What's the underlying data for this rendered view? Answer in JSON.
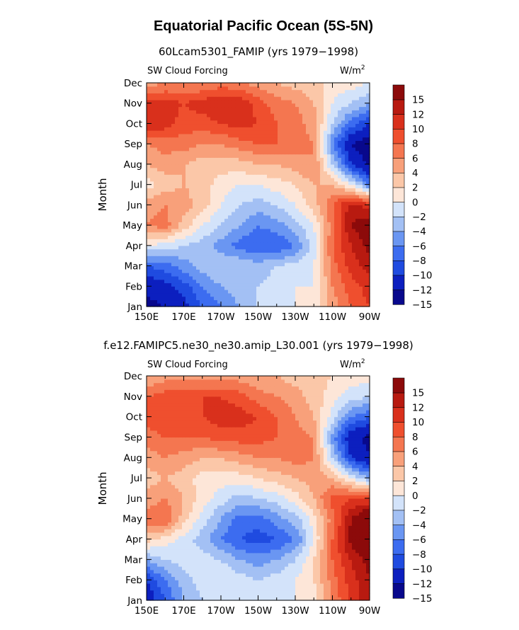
{
  "figure": {
    "title": "Equatorial Pacific Ocean (5S-5N)",
    "colorbar_colors": [
      "#08088c",
      "#0c1fbf",
      "#1f4be0",
      "#3c6cf0",
      "#6a96f2",
      "#a3c0f4",
      "#d3e3fa",
      "#fde6d8",
      "#fbc7a8",
      "#f8a07a",
      "#f47650",
      "#ef4f2e",
      "#d9301c",
      "#b81a10",
      "#8c0a0a"
    ],
    "colorbar_labels": [
      "15",
      "12",
      "10",
      "8",
      "6",
      "4",
      "2",
      "0",
      "−2",
      "−4",
      "−6",
      "−8",
      "−10",
      "−12",
      "−15"
    ],
    "colorbar_note": "boundaries: -15,-12,-10,-8,-6,-4,-2,0,2,4,6,8,10,12,15"
  },
  "chart_data": [
    {
      "type": "heatmap",
      "title": "60Lcam5301_FAMIP (yrs 1979−1998)",
      "left_label": "SW Cloud Forcing",
      "units_label": "W/m",
      "units_sup": "2",
      "ylabel": "Month",
      "x_tick_labels": [
        "150E",
        "170E",
        "170W",
        "150W",
        "130W",
        "110W",
        "90W"
      ],
      "x_tick_values_lon": [
        150,
        170,
        190,
        210,
        230,
        250,
        270
      ],
      "xlim_lon": [
        150,
        270
      ],
      "y_tick_labels": [
        "Jan",
        "Feb",
        "Mar",
        "Apr",
        "May",
        "Jun",
        "Jul",
        "Aug",
        "Sep",
        "Oct",
        "Nov",
        "Dec"
      ],
      "grid_lon": [
        150,
        160,
        170,
        180,
        190,
        200,
        210,
        220,
        230,
        240,
        250,
        260,
        270
      ],
      "values": [
        [
          -16,
          -15,
          -13,
          -10,
          -8,
          -6,
          -4,
          -3,
          -2,
          -2,
          3,
          6,
          8
        ],
        [
          -14,
          -13,
          -11,
          -8,
          -6,
          -5,
          -4,
          -3,
          -2,
          -2,
          4,
          7,
          9
        ],
        [
          -10,
          -9,
          -7,
          -5,
          -4,
          -4,
          -5,
          -4,
          -3,
          -2,
          5,
          9,
          11
        ],
        [
          -2,
          -3,
          -4,
          -5,
          -7,
          -9,
          -10,
          -10,
          -8,
          -3,
          6,
          10,
          13
        ],
        [
          4,
          5,
          1,
          -2,
          -4,
          -6,
          -8,
          -7,
          -5,
          -2,
          5,
          12,
          14
        ],
        [
          3,
          4,
          3,
          1,
          -2,
          -4,
          -5,
          -4,
          -2,
          1,
          6,
          11,
          9
        ],
        [
          -1,
          1,
          2,
          1,
          -1,
          -2,
          -2,
          -1,
          0,
          2,
          2,
          -2,
          -8
        ],
        [
          2,
          3,
          2,
          1,
          1,
          1,
          2,
          2,
          3,
          4,
          -4,
          -12,
          -16
        ],
        [
          4,
          5,
          5,
          4,
          4,
          5,
          6,
          6,
          5,
          4,
          -8,
          -15,
          -17
        ],
        [
          10,
          9,
          7,
          7,
          8,
          9,
          8,
          6,
          5,
          3,
          -4,
          -9,
          -12
        ],
        [
          9,
          9,
          8,
          9,
          10,
          10,
          7,
          5,
          4,
          2,
          -2,
          -4,
          -6
        ],
        [
          3,
          4,
          4,
          4,
          5,
          4,
          3,
          2,
          1,
          1,
          -1,
          -1,
          -2
        ]
      ]
    },
    {
      "type": "heatmap",
      "title": "f.e12.FAMIPC5.ne30_ne30.amip_L30.001 (yrs 1979−1998)",
      "left_label": "SW Cloud Forcing",
      "units_label": "W/m",
      "units_sup": "2",
      "ylabel": "Month",
      "x_tick_labels": [
        "150E",
        "170E",
        "170W",
        "150W",
        "130W",
        "110W",
        "90W"
      ],
      "x_tick_values_lon": [
        150,
        170,
        190,
        210,
        230,
        250,
        270
      ],
      "xlim_lon": [
        150,
        270
      ],
      "y_tick_labels": [
        "Jan",
        "Feb",
        "Mar",
        "Apr",
        "May",
        "Jun",
        "Jul",
        "Aug",
        "Sep",
        "Oct",
        "Nov",
        "Dec"
      ],
      "grid_lon": [
        150,
        160,
        170,
        180,
        190,
        200,
        210,
        220,
        230,
        240,
        250,
        260,
        270
      ],
      "values": [
        [
          -14,
          -10,
          -6,
          -4,
          -3,
          -3,
          -4,
          -3,
          -2,
          -1,
          4,
          9,
          11
        ],
        [
          -12,
          -8,
          -5,
          -3,
          -2,
          -3,
          -4,
          -3,
          -2,
          0,
          5,
          9,
          12
        ],
        [
          -6,
          -4,
          -3,
          -3,
          -4,
          -6,
          -7,
          -6,
          -4,
          0,
          6,
          10,
          13
        ],
        [
          1,
          -1,
          -3,
          -5,
          -8,
          -10,
          -11,
          -10,
          -8,
          -2,
          6,
          13,
          15
        ],
        [
          5,
          6,
          1,
          -3,
          -6,
          -9,
          -9,
          -7,
          -5,
          -1,
          5,
          12,
          16
        ],
        [
          3,
          4,
          2,
          -1,
          -3,
          -5,
          -4,
          -3,
          -1,
          2,
          7,
          8,
          8
        ],
        [
          1,
          2,
          1,
          -1,
          -1,
          -1,
          0,
          1,
          2,
          3,
          2,
          -2,
          -6
        ],
        [
          3,
          4,
          3,
          2,
          2,
          3,
          4,
          4,
          5,
          4,
          -4,
          -12,
          -15
        ],
        [
          5,
          6,
          6,
          6,
          7,
          7,
          7,
          6,
          5,
          4,
          -7,
          -14,
          -16
        ],
        [
          7,
          8,
          8,
          8,
          9,
          9,
          8,
          6,
          4,
          2,
          -3,
          -8,
          -10
        ],
        [
          6,
          7,
          7,
          8,
          8,
          7,
          5,
          4,
          3,
          1,
          -1,
          -3,
          -4
        ],
        [
          2,
          3,
          3,
          3,
          3,
          3,
          2,
          2,
          1,
          1,
          0,
          -1,
          -1
        ]
      ]
    }
  ]
}
